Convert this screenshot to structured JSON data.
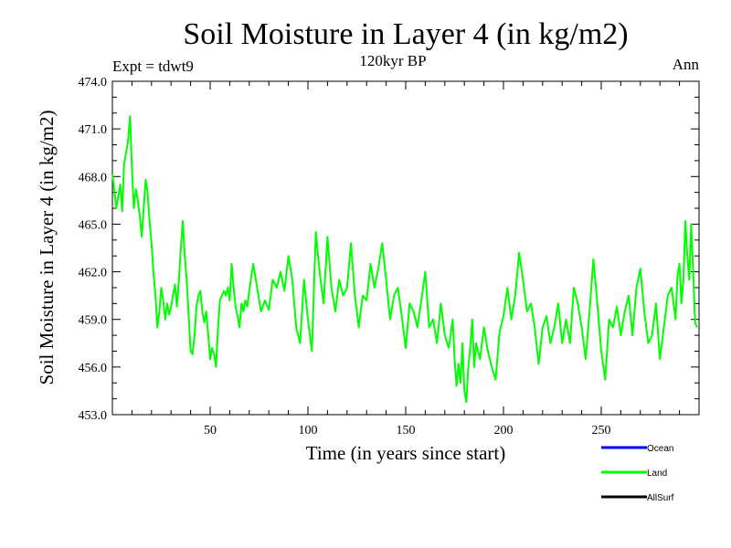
{
  "chart_data": {
    "type": "line",
    "title": "Soil Moisture in Layer 4 (in kg/m2)",
    "subtitle": "120kyr BP",
    "left_label": "Expt = tdwt9",
    "right_label": "Ann",
    "xlabel": "Time (in years since start)",
    "ylabel": "Soil Moisture in Layer 4 (in kg/m2)",
    "xlim": [
      0,
      300
    ],
    "ylim": [
      453.0,
      474.0
    ],
    "xticks": [
      50,
      100,
      150,
      200,
      250
    ],
    "xtick_labels": [
      "50",
      "100",
      "150",
      "200",
      "250"
    ],
    "yticks": [
      453.0,
      456.0,
      459.0,
      462.0,
      465.0,
      468.0,
      471.0,
      474.0
    ],
    "ytick_labels": [
      "453.0",
      "456.0",
      "459.0",
      "462.0",
      "465.0",
      "468.0",
      "471.0",
      "474.0"
    ],
    "legend": [
      {
        "name": "Ocean",
        "color": "#0000ff"
      },
      {
        "name": "Land",
        "color": "#00ff00"
      },
      {
        "name": "AllSurf",
        "color": "#000000"
      }
    ],
    "series": [
      {
        "name": "Land",
        "color": "#00ff00",
        "x": [
          0,
          2,
          4,
          5,
          6,
          8,
          9,
          10,
          11,
          12,
          13,
          14,
          15,
          16,
          17,
          18,
          19,
          20,
          21,
          22,
          23,
          24,
          25,
          26,
          27,
          28,
          29,
          30,
          31,
          32,
          33,
          34,
          35,
          36,
          37,
          38,
          39,
          40,
          41,
          42,
          43,
          44,
          45,
          46,
          47,
          48,
          49,
          50,
          51,
          52,
          53,
          54,
          55,
          56,
          57,
          58,
          59,
          60,
          61,
          62,
          63,
          64,
          65,
          66,
          67,
          68,
          69,
          70,
          72,
          74,
          76,
          78,
          80,
          82,
          84,
          86,
          88,
          90,
          92,
          94,
          96,
          98,
          100,
          102,
          104,
          106,
          108,
          110,
          112,
          114,
          116,
          118,
          120,
          122,
          124,
          126,
          128,
          130,
          132,
          134,
          136,
          138,
          140,
          142,
          144,
          146,
          148,
          150,
          152,
          154,
          156,
          158,
          160,
          162,
          164,
          166,
          168,
          170,
          172,
          174,
          175,
          176,
          177,
          178,
          179,
          180,
          181,
          182,
          183,
          184,
          185,
          186,
          188,
          190,
          192,
          194,
          196,
          198,
          200,
          202,
          204,
          206,
          208,
          210,
          212,
          214,
          216,
          218,
          220,
          222,
          224,
          226,
          228,
          230,
          232,
          234,
          236,
          238,
          240,
          242,
          244,
          246,
          248,
          250,
          252,
          254,
          256,
          258,
          260,
          262,
          264,
          266,
          268,
          270,
          272,
          274,
          276,
          278,
          280,
          282,
          284,
          286,
          288,
          289,
          290,
          291,
          292,
          293,
          294,
          295,
          296,
          297,
          298,
          299
        ],
        "values": [
          468.2,
          466.0,
          467.5,
          465.8,
          468.8,
          470.2,
          471.8,
          468.5,
          466.0,
          467.2,
          466.5,
          465.5,
          464.2,
          466.0,
          467.8,
          467.0,
          465.2,
          463.8,
          462.0,
          460.5,
          458.5,
          459.5,
          461.0,
          460.2,
          459.0,
          460.0,
          459.3,
          459.8,
          460.5,
          461.2,
          459.8,
          461.5,
          463.5,
          465.2,
          463.0,
          461.5,
          459.2,
          457.0,
          456.8,
          458.0,
          459.8,
          460.5,
          460.8,
          459.5,
          458.8,
          459.5,
          458.0,
          456.5,
          457.2,
          456.8,
          456.0,
          458.5,
          460.2,
          460.5,
          460.8,
          460.5,
          461.0,
          460.2,
          462.5,
          461.0,
          459.8,
          459.2,
          458.5,
          460.0,
          459.5,
          460.2,
          459.8,
          460.8,
          462.5,
          461.0,
          459.5,
          460.2,
          459.6,
          461.5,
          461.0,
          462.0,
          460.8,
          463.0,
          461.5,
          458.5,
          457.5,
          461.5,
          459.0,
          457.0,
          464.5,
          462.0,
          460.0,
          464.2,
          461.0,
          459.5,
          461.5,
          460.5,
          461.0,
          463.8,
          460.5,
          458.5,
          460.5,
          460.2,
          462.5,
          461.0,
          462.2,
          463.8,
          461.5,
          459.0,
          460.5,
          461.0,
          459.2,
          457.2,
          460.0,
          459.5,
          458.5,
          460.2,
          462.0,
          458.5,
          459.0,
          457.5,
          460.0,
          458.0,
          457.2,
          459.0,
          456.5,
          454.8,
          456.2,
          455.0,
          457.5,
          454.5,
          453.8,
          456.0,
          457.2,
          459.0,
          456.0,
          457.5,
          456.5,
          458.5,
          457.0,
          456.0,
          455.2,
          458.2,
          459.2,
          461.0,
          459.0,
          460.5,
          463.2,
          461.5,
          459.5,
          460.0,
          458.5,
          456.2,
          458.5,
          459.2,
          457.5,
          458.5,
          460.0,
          457.5,
          459.0,
          457.5,
          461.0,
          460.0,
          458.5,
          456.5,
          459.5,
          462.8,
          460.0,
          457.0,
          455.2,
          459.0,
          458.5,
          459.8,
          458.0,
          459.5,
          460.5,
          458.0,
          461.0,
          462.2,
          459.5,
          457.5,
          458.0,
          460.0,
          456.5,
          458.5,
          460.5,
          461.0,
          459.0,
          461.8,
          462.5,
          460.0,
          461.5,
          465.2,
          463.0,
          461.5,
          465.0,
          462.0,
          458.8,
          458.5
        ]
      }
    ]
  }
}
